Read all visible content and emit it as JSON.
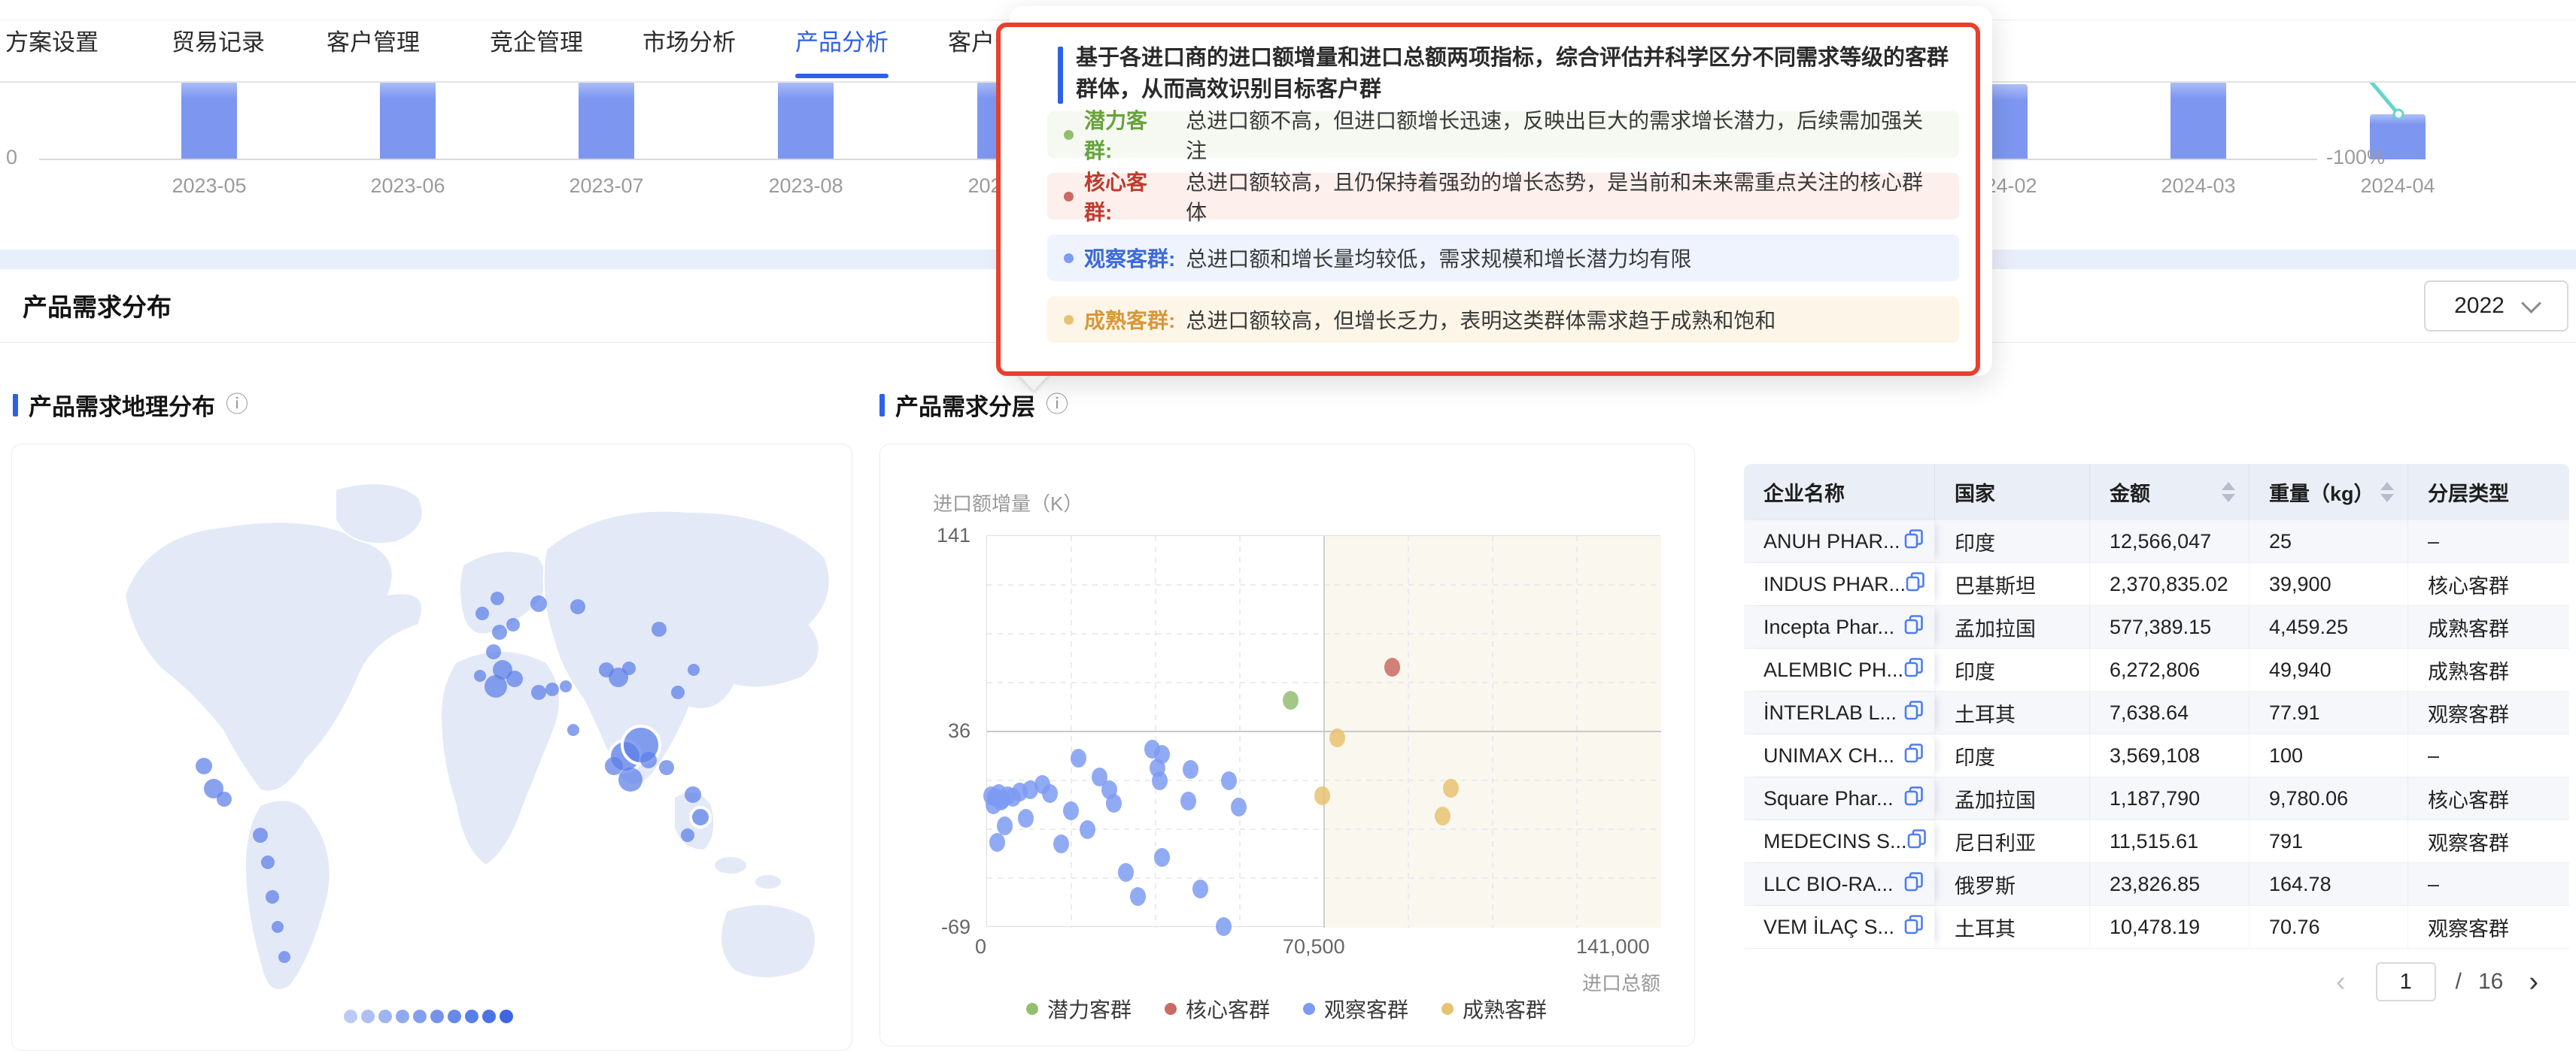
{
  "tabs": [
    {
      "label": "方案设置",
      "active": false,
      "x": 7
    },
    {
      "label": "贸易记录",
      "active": false,
      "x": 228
    },
    {
      "label": "客户管理",
      "active": false,
      "x": 434
    },
    {
      "label": "竞企管理",
      "active": false,
      "x": 651
    },
    {
      "label": "市场分析",
      "active": false,
      "x": 854
    },
    {
      "label": "产品分析",
      "active": true,
      "x": 1057
    },
    {
      "label": "客户分析",
      "active": false,
      "x": 1260
    }
  ],
  "trend_chart": {
    "type": "bar",
    "left_axis_label": "0",
    "right_axis_label": "-100%",
    "note": "monthly import bar chart clipped at top by scroll; teal growth-rate line visible at 2024-04",
    "bar_color": "#7d97f1",
    "line_color": "#66d4c9",
    "bars": [
      {
        "label": "2023-05",
        "x": 278,
        "h": 104
      },
      {
        "label": "2023-06",
        "x": 542,
        "h": 104
      },
      {
        "label": "2023-07",
        "x": 806,
        "h": 104
      },
      {
        "label": "2023-08",
        "x": 1071,
        "h": 104
      },
      {
        "label": "2023-09",
        "x": 1336,
        "h": 104
      },
      {
        "label": "2024-02",
        "x": 2658,
        "h": 100
      },
      {
        "label": "2024-03",
        "x": 2922,
        "h": 104
      },
      {
        "label": "2024-04",
        "x": 3187,
        "h": 60
      }
    ]
  },
  "section": {
    "title": "产品需求分布",
    "year_selector": {
      "value": "2022"
    }
  },
  "geo_chart": {
    "title": "产品需求地理分布",
    "info_icon": "info-circle",
    "type": "map-bubble",
    "scale_colors": [
      "#bccbf6",
      "#adc0f4",
      "#9eb5f2",
      "#90aaf0",
      "#829fee",
      "#7494ec",
      "#6689ea",
      "#587ee8",
      "#4a73e5",
      "#3d66e2"
    ],
    "bubbles": [
      {
        "x": 255,
        "y": 428,
        "r": 11
      },
      {
        "x": 268,
        "y": 458,
        "r": 13
      },
      {
        "x": 282,
        "y": 472,
        "r": 10
      },
      {
        "x": 330,
        "y": 520,
        "r": 10
      },
      {
        "x": 340,
        "y": 556,
        "r": 9
      },
      {
        "x": 346,
        "y": 602,
        "r": 9
      },
      {
        "x": 353,
        "y": 642,
        "r": 8
      },
      {
        "x": 362,
        "y": 682,
        "r": 8
      },
      {
        "x": 625,
        "y": 225,
        "r": 9
      },
      {
        "x": 648,
        "y": 250,
        "r": 10
      },
      {
        "x": 666,
        "y": 240,
        "r": 9
      },
      {
        "x": 640,
        "y": 276,
        "r": 10
      },
      {
        "x": 652,
        "y": 300,
        "r": 13
      },
      {
        "x": 643,
        "y": 322,
        "r": 15
      },
      {
        "x": 668,
        "y": 312,
        "r": 11
      },
      {
        "x": 622,
        "y": 308,
        "r": 8
      },
      {
        "x": 645,
        "y": 205,
        "r": 9
      },
      {
        "x": 700,
        "y": 212,
        "r": 11
      },
      {
        "x": 752,
        "y": 216,
        "r": 10
      },
      {
        "x": 860,
        "y": 246,
        "r": 10
      },
      {
        "x": 700,
        "y": 330,
        "r": 10
      },
      {
        "x": 718,
        "y": 326,
        "r": 9
      },
      {
        "x": 736,
        "y": 322,
        "r": 8
      },
      {
        "x": 746,
        "y": 380,
        "r": 8
      },
      {
        "x": 790,
        "y": 300,
        "r": 10
      },
      {
        "x": 806,
        "y": 310,
        "r": 13
      },
      {
        "x": 820,
        "y": 298,
        "r": 9
      },
      {
        "x": 815,
        "y": 415,
        "r": 21,
        "ring": true
      },
      {
        "x": 836,
        "y": 400,
        "r": 25,
        "ring": true
      },
      {
        "x": 822,
        "y": 446,
        "r": 16
      },
      {
        "x": 800,
        "y": 428,
        "r": 12
      },
      {
        "x": 846,
        "y": 420,
        "r": 11
      },
      {
        "x": 870,
        "y": 430,
        "r": 10
      },
      {
        "x": 905,
        "y": 466,
        "r": 11
      },
      {
        "x": 915,
        "y": 496,
        "r": 13,
        "ring": true
      },
      {
        "x": 898,
        "y": 520,
        "r": 9
      },
      {
        "x": 885,
        "y": 330,
        "r": 9
      },
      {
        "x": 906,
        "y": 300,
        "r": 8
      }
    ]
  },
  "layer_chart": {
    "title": "产品需求分层",
    "info_icon": "info-circle",
    "type": "scatter",
    "y_axis_label": "进口额增量（K）",
    "x_axis_label": "进口总额",
    "y_ticks": [
      "141",
      "36",
      "-69"
    ],
    "x_ticks": [
      "0",
      "70,500",
      "141,000"
    ],
    "x_range": [
      0,
      141000
    ],
    "y_range": [
      -69,
      141
    ],
    "quadrant_x": 70500,
    "quadrant_y": 36,
    "series": [
      {
        "name": "潜力客群",
        "color": "#93be70",
        "points": [
          [
            63400,
            53
          ]
        ]
      },
      {
        "name": "核心客群",
        "color": "#c96b61",
        "points": [
          [
            84700,
            71
          ]
        ]
      },
      {
        "name": "观察客群",
        "color": "#7e9bf2",
        "points": [
          [
            800,
            2
          ],
          [
            1600,
            1
          ],
          [
            2400,
            3
          ],
          [
            3200,
            0
          ],
          [
            4200,
            2
          ],
          [
            5400,
            1
          ],
          [
            1200,
            -3
          ],
          [
            2800,
            -1
          ],
          [
            6800,
            4
          ],
          [
            9000,
            5
          ],
          [
            11500,
            8
          ],
          [
            13000,
            3
          ],
          [
            3600,
            -14
          ],
          [
            2000,
            -23
          ],
          [
            8000,
            -10
          ],
          [
            15500,
            -24
          ],
          [
            17500,
            -6
          ],
          [
            19000,
            22
          ],
          [
            21000,
            -16
          ],
          [
            23500,
            12
          ],
          [
            25500,
            5
          ],
          [
            26500,
            -2
          ],
          [
            29000,
            -39
          ],
          [
            31500,
            -52
          ],
          [
            34500,
            27
          ],
          [
            36500,
            24
          ],
          [
            35500,
            17
          ],
          [
            36000,
            10
          ],
          [
            42500,
            16
          ],
          [
            42000,
            -1
          ],
          [
            36500,
            -31
          ],
          [
            44500,
            -48
          ],
          [
            49400,
            -68
          ],
          [
            50500,
            10
          ],
          [
            52500,
            -4
          ]
        ]
      },
      {
        "name": "成熟客群",
        "color": "#e7c272",
        "points": [
          [
            73200,
            33
          ],
          [
            70000,
            2
          ],
          [
            96900,
            6
          ],
          [
            95200,
            -9
          ]
        ]
      }
    ]
  },
  "tooltip": {
    "intro": "基于各进口商的进口额增量和进口总额两项指标，综合评估并科学区分不同需求等级的客群群体，从而高效识别目标客户群",
    "items": [
      {
        "label": "潜力客群:",
        "desc": "总进口额不高，但进口额增长迅速，反映出巨大的需求增长潜力，后续需加强关注",
        "color": "#67a23c",
        "dot": "#93be70",
        "bg": "#f5f9f1"
      },
      {
        "label": "核心客群:",
        "desc": "总进口额较高，且仍保持着强劲的增长态势，是当前和未来需重点关注的核心群体",
        "color": "#c03b2e",
        "dot": "#c96b61",
        "bg": "#fcefec"
      },
      {
        "label": "观察客群:",
        "desc": "总进口额和增长量均较低，需求规模和增长潜力均有限",
        "color": "#3d6ad6",
        "dot": "#7e9bf2",
        "bg": "#eef3fd"
      },
      {
        "label": "成熟客群:",
        "desc": "总进口额较高，但增长乏力，表明这类群体需求趋于成熟和饱和",
        "color": "#d8973b",
        "dot": "#e7c272",
        "bg": "#fdf6e8"
      }
    ]
  },
  "table": {
    "headers": [
      {
        "label": "企业名称",
        "sortable": false
      },
      {
        "label": "国家",
        "sortable": false
      },
      {
        "label": "金额",
        "sortable": true
      },
      {
        "label": "重量（kg）",
        "sortable": true
      },
      {
        "label": "分层类型",
        "sortable": false
      }
    ],
    "rows": [
      {
        "name": "ANUH PHAR...",
        "country": "印度",
        "amount": "12,566,047",
        "weight": "25",
        "type": "–"
      },
      {
        "name": "INDUS PHAR...",
        "country": "巴基斯坦",
        "amount": "2,370,835.02",
        "weight": "39,900",
        "type": "核心客群"
      },
      {
        "name": "Incepta Phar...",
        "country": "孟加拉国",
        "amount": "577,389.15",
        "weight": "4,459.25",
        "type": "成熟客群"
      },
      {
        "name": "ALEMBIC PH...",
        "country": "印度",
        "amount": "6,272,806",
        "weight": "49,940",
        "type": "成熟客群"
      },
      {
        "name": "İNTERLAB L...",
        "country": "土耳其",
        "amount": "7,638.64",
        "weight": "77.91",
        "type": "观察客群"
      },
      {
        "name": "UNIMAX CH...",
        "country": "印度",
        "amount": "3,569,108",
        "weight": "100",
        "type": "–"
      },
      {
        "name": "Square Phar...",
        "country": "孟加拉国",
        "amount": "1,187,790",
        "weight": "9,780.06",
        "type": "核心客群"
      },
      {
        "name": "MEDECINS S...",
        "country": "尼日利亚",
        "amount": "11,515.61",
        "weight": "791",
        "type": "观察客群"
      },
      {
        "name": "LLC BIO-RA...",
        "country": "俄罗斯",
        "amount": "23,826.85",
        "weight": "164.78",
        "type": "–"
      },
      {
        "name": "VEM İLAÇ S...",
        "country": "土耳其",
        "amount": "10,478.19",
        "weight": "70.76",
        "type": "观察客群"
      }
    ],
    "pagination": {
      "prev": "‹",
      "page": "1",
      "separator": "/",
      "total": "16",
      "next": "›"
    }
  }
}
